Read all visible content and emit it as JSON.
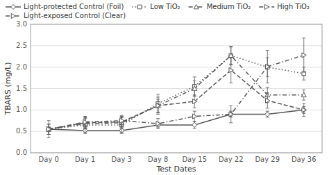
{
  "chart_data": {
    "type": "line",
    "xlabel": "Test Dates",
    "ylabel": "TBARS (mg/L)",
    "categories": [
      "Day 0",
      "Day 1",
      "Day 3",
      "Day 8",
      "Day 15",
      "Day 22",
      "Day 29",
      "Day 36"
    ],
    "series": [
      {
        "name": "Light-protected Control (Foil)",
        "color": "#555555",
        "marker": "diamond",
        "line_style": "solid",
        "values": [
          0.55,
          0.52,
          0.52,
          0.65,
          0.65,
          0.9,
          0.9,
          1.0
        ],
        "errors": [
          0.05,
          0.05,
          0.05,
          0.05,
          0.08,
          0.07,
          0.07,
          0.08
        ]
      },
      {
        "name": "Low TiO₂",
        "color": "#555555",
        "marker": "square",
        "line_style": "dotted",
        "values": [
          0.55,
          0.65,
          0.65,
          1.15,
          1.55,
          2.27,
          2.0,
          1.85
        ],
        "errors": [
          0.2,
          0.2,
          0.2,
          0.22,
          0.22,
          0.22,
          0.22,
          0.15
        ]
      },
      {
        "name": "Medium TiO₂",
        "color": "#555555",
        "marker": "triangle-up",
        "line_style": "dashdot",
        "values": [
          0.55,
          0.68,
          0.7,
          1.1,
          1.5,
          2.27,
          1.35,
          1.35
        ],
        "errors": [
          0.12,
          0.12,
          0.12,
          0.2,
          0.18,
          0.2,
          0.18,
          0.12
        ]
      },
      {
        "name": "High TiO₂",
        "color": "#555555",
        "marker": "triangle-right",
        "line_style": "dashed",
        "values": [
          0.55,
          0.7,
          0.72,
          1.1,
          1.2,
          1.93,
          1.22,
          1.0
        ],
        "errors": [
          0.12,
          0.12,
          0.12,
          0.15,
          0.15,
          0.3,
          0.18,
          0.15
        ]
      },
      {
        "name": "Light-exposed Control (Clear)",
        "color": "#555555",
        "marker": "triangle-right",
        "line_style": "dashdot",
        "values": [
          0.55,
          0.72,
          0.75,
          0.68,
          0.85,
          0.9,
          2.01,
          2.28
        ],
        "errors": [
          0.12,
          0.12,
          0.12,
          0.12,
          0.12,
          0.2,
          0.38,
          0.4
        ]
      }
    ],
    "ylim": [
      0,
      3
    ],
    "yticks": [
      {
        "value": 0,
        "label": "0.0"
      },
      0.5,
      {
        "value": 1.0,
        "label": "1.0"
      },
      {
        "value": 1.5,
        "label": "1.5"
      },
      {
        "value": 2.0,
        "label": "2.0"
      },
      {
        "value": 2.5,
        "label": "2.5"
      },
      {
        "value": 3.0,
        "label": "3.0"
      }
    ],
    "grid": true,
    "legend": "top"
  }
}
